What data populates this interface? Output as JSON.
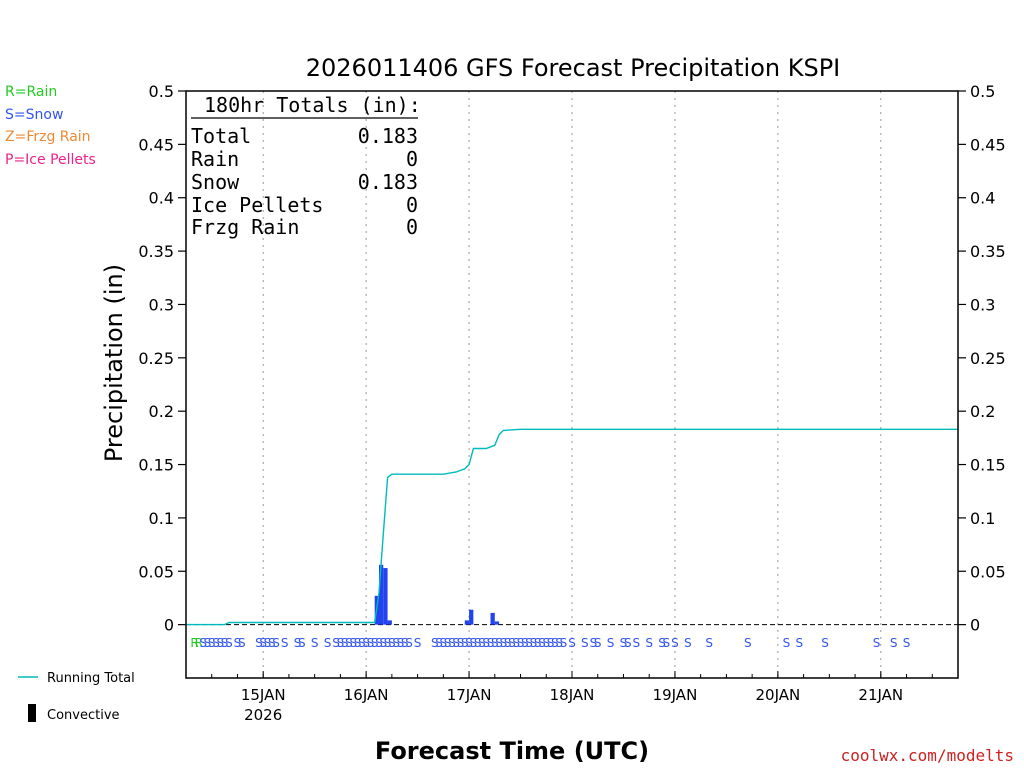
{
  "colors": {
    "rain": "#22cc22",
    "snow": "#3355ee",
    "frzg_rain": "#ee8833",
    "ice_pellets": "#ee2288",
    "running_total": "#00bbbb",
    "convective": "#000000",
    "bars": "#2244ee",
    "watermark": "#cc2222"
  },
  "legend_left": {
    "rain": "R=Rain",
    "snow": "S=Snow",
    "frzg_rain": "Z=Frzg Rain",
    "ice_pellets": "P=Ice Pellets"
  },
  "legend_bottom": {
    "running_total": "Running Total",
    "convective": "Convective"
  },
  "totals_box": {
    "header": "180hr Totals (in):",
    "rows": [
      {
        "label": "Total",
        "value": "0.183"
      },
      {
        "label": "Rain",
        "value": "0"
      },
      {
        "label": "Snow",
        "value": "0.183"
      },
      {
        "label": "Ice Pellets",
        "value": "0"
      },
      {
        "label": "Frzg Rain",
        "value": "0"
      }
    ]
  },
  "watermark": "coolwx.com/modelts",
  "chart_data": {
    "type": "bar+line",
    "title": "2026011406 GFS Forecast Precipitation KSPI",
    "xlabel": "Forecast Time (UTC)",
    "ylabel": "Precipitation (in)",
    "ylim": [
      -0.05,
      0.5
    ],
    "xlim_hours": [
      0,
      180
    ],
    "yticks": [
      "0",
      "0.05",
      "0.1",
      "0.15",
      "0.2",
      "0.25",
      "0.3",
      "0.35",
      "0.4",
      "0.45",
      "0.5"
    ],
    "ytick_values": [
      0,
      0.05,
      0.1,
      0.15,
      0.2,
      0.25,
      0.3,
      0.35,
      0.4,
      0.45,
      0.5
    ],
    "xticks": [
      {
        "hour": 18,
        "label": "15JAN",
        "sub": "2026"
      },
      {
        "hour": 42,
        "label": "16JAN",
        "sub": ""
      },
      {
        "hour": 66,
        "label": "17JAN",
        "sub": ""
      },
      {
        "hour": 90,
        "label": "18JAN",
        "sub": ""
      },
      {
        "hour": 114,
        "label": "19JAN",
        "sub": ""
      },
      {
        "hour": 138,
        "label": "20JAN",
        "sub": ""
      },
      {
        "hour": 162,
        "label": "21JAN",
        "sub": ""
      }
    ],
    "bars": [
      {
        "hour": 45,
        "value": 0.027
      },
      {
        "hour": 46,
        "value": 0.056
      },
      {
        "hour": 47,
        "value": 0.053
      },
      {
        "hour": 48,
        "value": 0.004
      },
      {
        "hour": 66,
        "value": 0.004
      },
      {
        "hour": 67,
        "value": 0.014
      },
      {
        "hour": 72,
        "value": 0.011
      },
      {
        "hour": 73,
        "value": 0.003
      }
    ],
    "running_total": {
      "name": "Running Total",
      "points": [
        [
          0,
          0
        ],
        [
          9,
          0
        ],
        [
          10,
          0.002
        ],
        [
          44,
          0.002
        ],
        [
          45,
          0.03
        ],
        [
          46,
          0.085
        ],
        [
          47,
          0.138
        ],
        [
          48,
          0.141
        ],
        [
          60,
          0.141
        ],
        [
          63,
          0.143
        ],
        [
          65,
          0.146
        ],
        [
          66,
          0.15
        ],
        [
          67,
          0.165
        ],
        [
          70,
          0.165
        ],
        [
          72,
          0.168
        ],
        [
          73,
          0.178
        ],
        [
          74,
          0.182
        ],
        [
          78,
          0.183
        ],
        [
          180,
          0.183
        ]
      ]
    },
    "ptype_marks": [
      {
        "hour": 2,
        "type": "R"
      },
      {
        "hour": 3,
        "type": "R"
      },
      {
        "hour": 4,
        "type": "S"
      },
      {
        "hour": 5,
        "type": "S"
      },
      {
        "hour": 6,
        "type": "S"
      },
      {
        "hour": 7,
        "type": "S"
      },
      {
        "hour": 8,
        "type": "S"
      },
      {
        "hour": 9,
        "type": "S"
      },
      {
        "hour": 10,
        "type": "S"
      },
      {
        "hour": 12,
        "type": "S"
      },
      {
        "hour": 13,
        "type": "S"
      },
      {
        "hour": 17,
        "type": "S"
      },
      {
        "hour": 18,
        "type": "S"
      },
      {
        "hour": 19,
        "type": "S"
      },
      {
        "hour": 20,
        "type": "S"
      },
      {
        "hour": 21,
        "type": "S"
      },
      {
        "hour": 23,
        "type": "S"
      },
      {
        "hour": 26,
        "type": "S"
      },
      {
        "hour": 27,
        "type": "S"
      },
      {
        "hour": 30,
        "type": "S"
      },
      {
        "hour": 33,
        "type": "S"
      },
      {
        "hour": 35,
        "type": "S"
      },
      {
        "hour": 36,
        "type": "S"
      },
      {
        "hour": 37,
        "type": "S"
      },
      {
        "hour": 38,
        "type": "S"
      },
      {
        "hour": 39,
        "type": "S"
      },
      {
        "hour": 40,
        "type": "S"
      },
      {
        "hour": 41,
        "type": "S"
      },
      {
        "hour": 42,
        "type": "S"
      },
      {
        "hour": 43,
        "type": "S"
      },
      {
        "hour": 44,
        "type": "S"
      },
      {
        "hour": 45,
        "type": "S"
      },
      {
        "hour": 46,
        "type": "S"
      },
      {
        "hour": 47,
        "type": "S"
      },
      {
        "hour": 48,
        "type": "S"
      },
      {
        "hour": 49,
        "type": "S"
      },
      {
        "hour": 50,
        "type": "S"
      },
      {
        "hour": 51,
        "type": "S"
      },
      {
        "hour": 52,
        "type": "S"
      },
      {
        "hour": 54,
        "type": "S"
      },
      {
        "hour": 58,
        "type": "S"
      },
      {
        "hour": 59,
        "type": "S"
      },
      {
        "hour": 60,
        "type": "S"
      },
      {
        "hour": 61,
        "type": "S"
      },
      {
        "hour": 62,
        "type": "S"
      },
      {
        "hour": 63,
        "type": "S"
      },
      {
        "hour": 64,
        "type": "S"
      },
      {
        "hour": 65,
        "type": "S"
      },
      {
        "hour": 66,
        "type": "S"
      },
      {
        "hour": 67,
        "type": "S"
      },
      {
        "hour": 68,
        "type": "S"
      },
      {
        "hour": 69,
        "type": "S"
      },
      {
        "hour": 70,
        "type": "S"
      },
      {
        "hour": 71,
        "type": "S"
      },
      {
        "hour": 72,
        "type": "S"
      },
      {
        "hour": 73,
        "type": "S"
      },
      {
        "hour": 74,
        "type": "S"
      },
      {
        "hour": 75,
        "type": "S"
      },
      {
        "hour": 76,
        "type": "S"
      },
      {
        "hour": 77,
        "type": "S"
      },
      {
        "hour": 78,
        "type": "S"
      },
      {
        "hour": 79,
        "type": "S"
      },
      {
        "hour": 80,
        "type": "S"
      },
      {
        "hour": 81,
        "type": "S"
      },
      {
        "hour": 82,
        "type": "S"
      },
      {
        "hour": 83,
        "type": "S"
      },
      {
        "hour": 84,
        "type": "S"
      },
      {
        "hour": 85,
        "type": "S"
      },
      {
        "hour": 86,
        "type": "S"
      },
      {
        "hour": 87,
        "type": "S"
      },
      {
        "hour": 88,
        "type": "S"
      },
      {
        "hour": 90,
        "type": "S"
      },
      {
        "hour": 93,
        "type": "S"
      },
      {
        "hour": 95,
        "type": "S"
      },
      {
        "hour": 96,
        "type": "S"
      },
      {
        "hour": 99,
        "type": "S"
      },
      {
        "hour": 102,
        "type": "S"
      },
      {
        "hour": 103,
        "type": "S"
      },
      {
        "hour": 105,
        "type": "S"
      },
      {
        "hour": 108,
        "type": "S"
      },
      {
        "hour": 111,
        "type": "S"
      },
      {
        "hour": 112,
        "type": "S"
      },
      {
        "hour": 114,
        "type": "S"
      },
      {
        "hour": 117,
        "type": "S"
      },
      {
        "hour": 122,
        "type": "S"
      },
      {
        "hour": 131,
        "type": "S"
      },
      {
        "hour": 140,
        "type": "S"
      },
      {
        "hour": 143,
        "type": "S"
      },
      {
        "hour": 149,
        "type": "S"
      },
      {
        "hour": 161,
        "type": "S"
      },
      {
        "hour": 165,
        "type": "S"
      },
      {
        "hour": 168,
        "type": "S"
      }
    ]
  }
}
